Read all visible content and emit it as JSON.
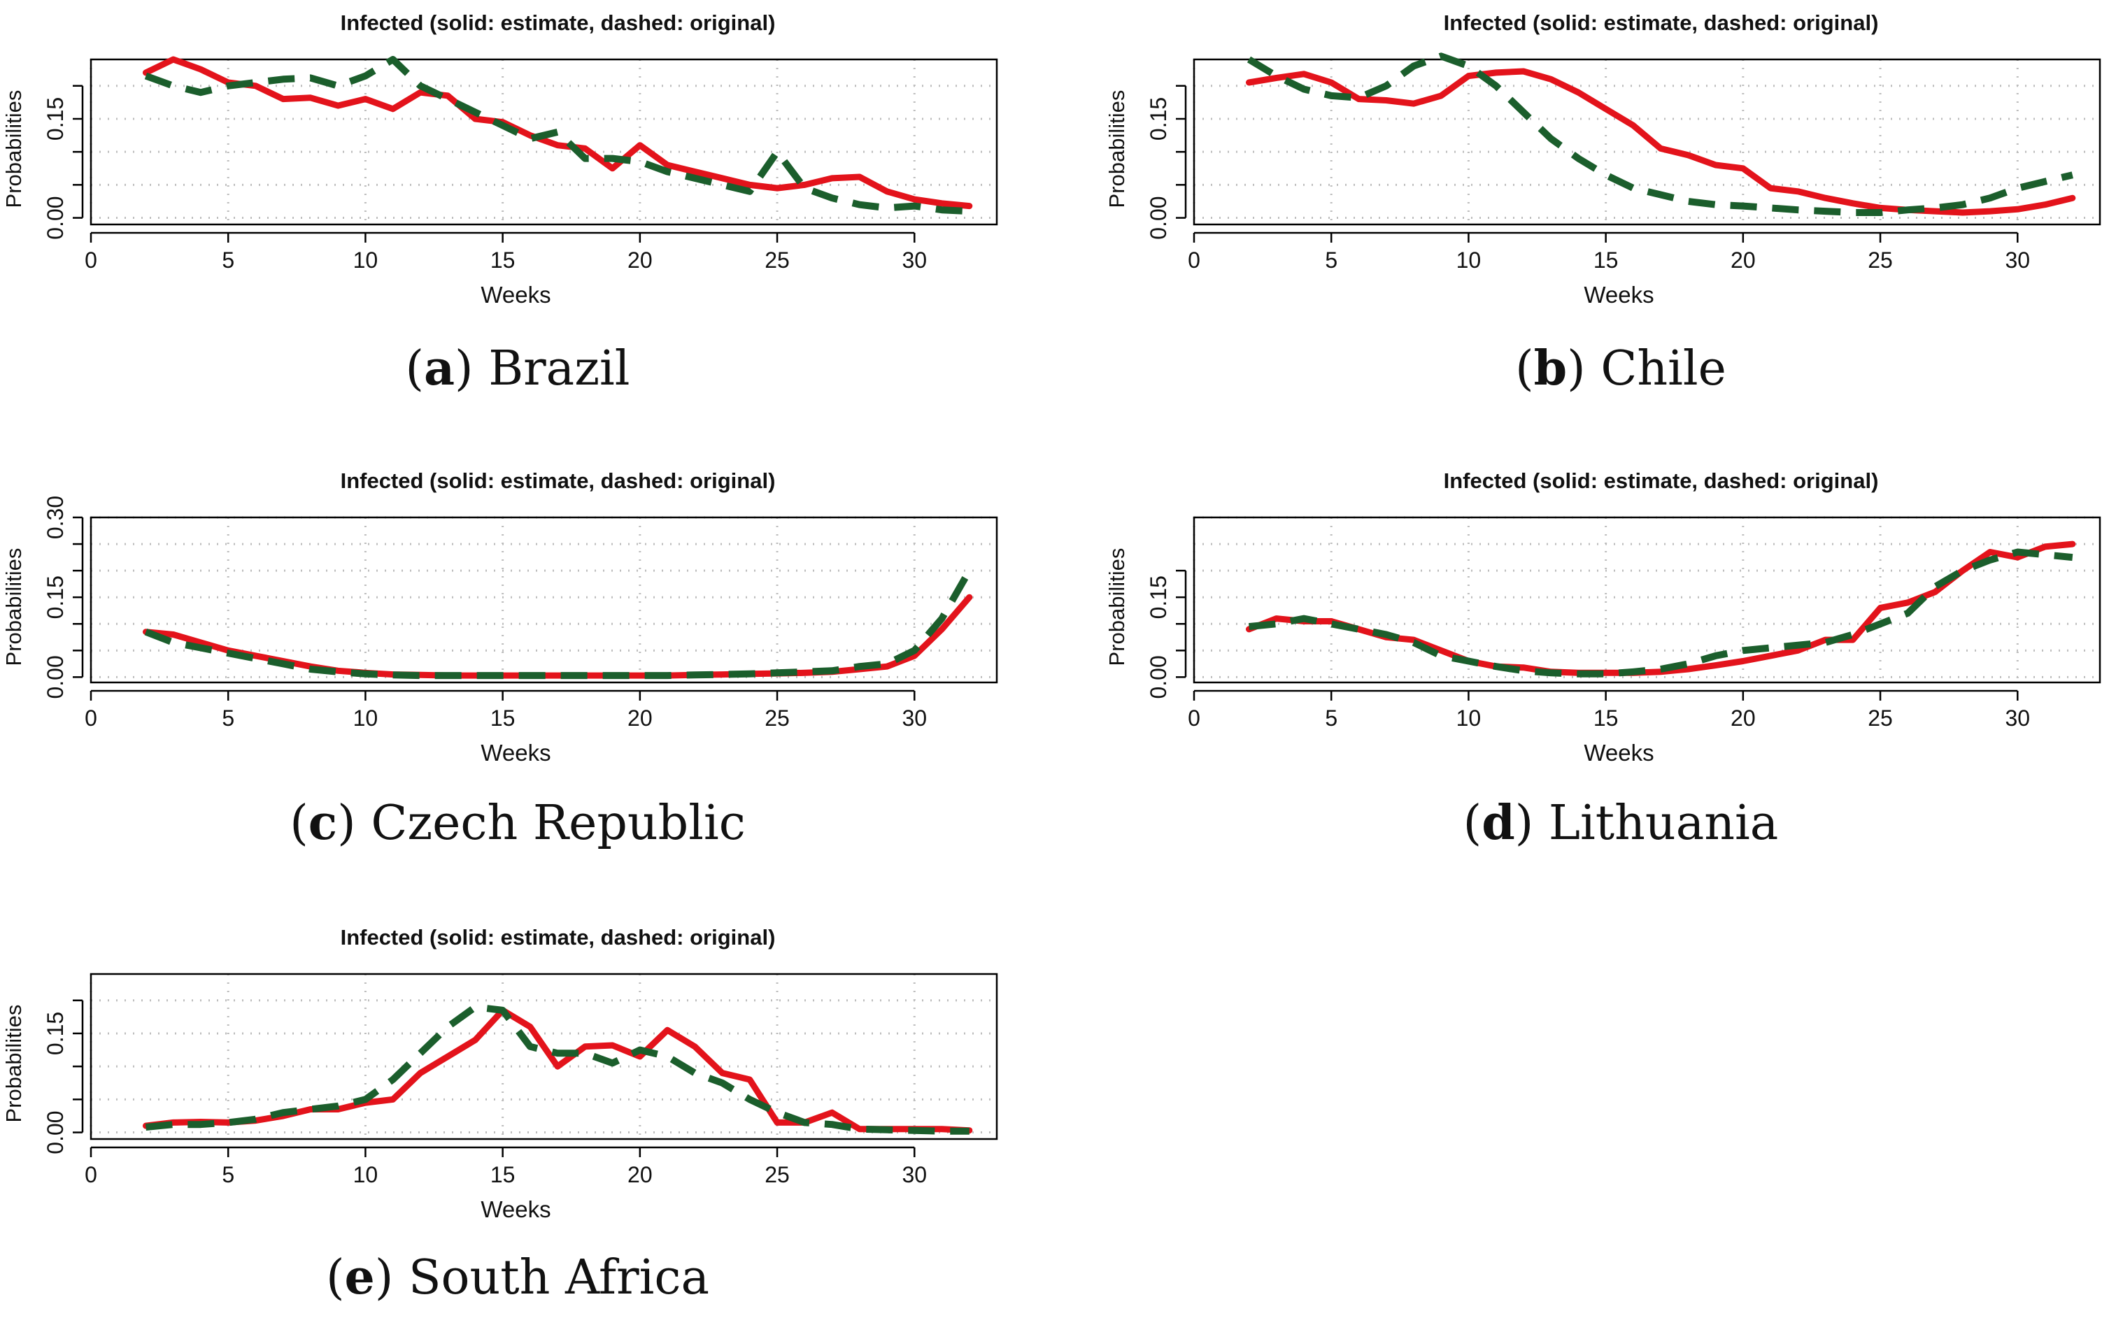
{
  "colors": {
    "estimate": "#e3131b",
    "original": "#1b5e2c",
    "grid": "#bdbdbd",
    "axis": "#000000"
  },
  "chart_data": [
    {
      "type": "line",
      "title": "Infected  (solid: estimate, dashed: original)",
      "xlabel": "Weeks",
      "ylabel": "Probabilities",
      "xlim": [
        0,
        33
      ],
      "ylim": [
        -0.01,
        0.24
      ],
      "xticks": [
        "0",
        "5",
        "10",
        "15",
        "20",
        "25",
        "30"
      ],
      "yticks": [
        "0.00",
        "0.15"
      ],
      "grid": true,
      "panel_label": "a",
      "country": "Brazil",
      "x": [
        2,
        3,
        4,
        5,
        6,
        7,
        8,
        9,
        10,
        11,
        12,
        13,
        14,
        15,
        16,
        17,
        18,
        19,
        20,
        21,
        22,
        23,
        24,
        25,
        26,
        27,
        28,
        29,
        30,
        31,
        32
      ],
      "series": [
        {
          "name": "estimate",
          "style": "solid",
          "values": [
            0.22,
            0.24,
            0.225,
            0.205,
            0.2,
            0.18,
            0.182,
            0.17,
            0.18,
            0.165,
            0.19,
            0.185,
            0.15,
            0.145,
            0.125,
            0.11,
            0.105,
            0.075,
            0.11,
            0.08,
            0.07,
            0.06,
            0.05,
            0.045,
            0.05,
            0.06,
            0.062,
            0.04,
            0.028,
            0.022,
            0.018
          ]
        },
        {
          "name": "original",
          "style": "dashed",
          "values": [
            0.215,
            0.2,
            0.19,
            0.2,
            0.205,
            0.21,
            0.212,
            0.2,
            0.215,
            0.24,
            0.2,
            0.18,
            0.16,
            0.14,
            0.12,
            0.13,
            0.09,
            0.09,
            0.085,
            0.07,
            0.06,
            0.05,
            0.04,
            0.1,
            0.045,
            0.03,
            0.02,
            0.015,
            0.018,
            0.012,
            0.01
          ]
        }
      ]
    },
    {
      "type": "line",
      "title": "Infected  (solid: estimate, dashed: original)",
      "xlabel": "Weeks",
      "ylabel": "Probabilities",
      "xlim": [
        0,
        33
      ],
      "ylim": [
        -0.01,
        0.24
      ],
      "xticks": [
        "0",
        "5",
        "10",
        "15",
        "20",
        "25",
        "30"
      ],
      "yticks": [
        "0.00",
        "0.15"
      ],
      "grid": true,
      "panel_label": "b",
      "country": "Chile",
      "x": [
        2,
        3,
        4,
        5,
        6,
        7,
        8,
        9,
        10,
        11,
        12,
        13,
        14,
        15,
        16,
        17,
        18,
        19,
        20,
        21,
        22,
        23,
        24,
        25,
        26,
        27,
        28,
        29,
        30,
        31,
        32
      ],
      "series": [
        {
          "name": "estimate",
          "style": "solid",
          "values": [
            0.205,
            0.212,
            0.218,
            0.205,
            0.18,
            0.178,
            0.173,
            0.185,
            0.215,
            0.22,
            0.222,
            0.21,
            0.19,
            0.165,
            0.14,
            0.105,
            0.095,
            0.08,
            0.075,
            0.045,
            0.04,
            0.03,
            0.022,
            0.015,
            0.012,
            0.01,
            0.008,
            0.01,
            0.013,
            0.02,
            0.03
          ]
        },
        {
          "name": "original",
          "style": "dashed",
          "values": [
            0.24,
            0.215,
            0.195,
            0.185,
            0.182,
            0.2,
            0.23,
            0.245,
            0.23,
            0.2,
            0.16,
            0.12,
            0.09,
            0.065,
            0.045,
            0.035,
            0.025,
            0.02,
            0.018,
            0.015,
            0.012,
            0.01,
            0.008,
            0.008,
            0.012,
            0.015,
            0.02,
            0.03,
            0.045,
            0.055,
            0.065
          ]
        }
      ]
    },
    {
      "type": "line",
      "title": "Infected  (solid: estimate, dashed: original)",
      "xlabel": "Weeks",
      "ylabel": "Probabilities",
      "xlim": [
        0,
        33
      ],
      "ylim": [
        -0.01,
        0.3
      ],
      "xticks": [
        "0",
        "5",
        "10",
        "15",
        "20",
        "25",
        "30"
      ],
      "yticks": [
        "0.00",
        "0.15",
        "0.30"
      ],
      "grid": true,
      "panel_label": "c",
      "country": "Czech Republic",
      "x": [
        2,
        3,
        4,
        5,
        6,
        7,
        8,
        9,
        10,
        11,
        12,
        13,
        14,
        15,
        16,
        17,
        18,
        19,
        20,
        21,
        22,
        23,
        24,
        25,
        26,
        27,
        28,
        29,
        30,
        31,
        32
      ],
      "series": [
        {
          "name": "estimate",
          "style": "solid",
          "values": [
            0.085,
            0.08,
            0.065,
            0.05,
            0.04,
            0.03,
            0.02,
            0.012,
            0.008,
            0.005,
            0.004,
            0.003,
            0.003,
            0.003,
            0.003,
            0.003,
            0.003,
            0.003,
            0.003,
            0.003,
            0.004,
            0.005,
            0.006,
            0.007,
            0.008,
            0.01,
            0.015,
            0.02,
            0.04,
            0.09,
            0.15
          ]
        },
        {
          "name": "original",
          "style": "dashed",
          "values": [
            0.085,
            0.065,
            0.055,
            0.045,
            0.035,
            0.025,
            0.015,
            0.01,
            0.006,
            0.004,
            0.003,
            0.003,
            0.003,
            0.003,
            0.003,
            0.003,
            0.003,
            0.003,
            0.003,
            0.003,
            0.004,
            0.005,
            0.006,
            0.008,
            0.01,
            0.012,
            0.02,
            0.025,
            0.05,
            0.11,
            0.2
          ]
        }
      ]
    },
    {
      "type": "line",
      "title": "Infected  (solid: estimate, dashed: original)",
      "xlabel": "Weeks",
      "ylabel": "Probabilities",
      "xlim": [
        0,
        33
      ],
      "ylim": [
        -0.01,
        0.3
      ],
      "xticks": [
        "0",
        "5",
        "10",
        "15",
        "20",
        "25",
        "30"
      ],
      "yticks": [
        "0.00",
        "0.15"
      ],
      "grid": true,
      "panel_label": "d",
      "country": "Lithuania",
      "x": [
        2,
        3,
        4,
        5,
        6,
        7,
        8,
        9,
        10,
        11,
        12,
        13,
        14,
        15,
        16,
        17,
        18,
        19,
        20,
        21,
        22,
        23,
        24,
        25,
        26,
        27,
        28,
        29,
        30,
        31,
        32
      ],
      "series": [
        {
          "name": "estimate",
          "style": "solid",
          "values": [
            0.09,
            0.11,
            0.105,
            0.105,
            0.09,
            0.075,
            0.07,
            0.05,
            0.03,
            0.02,
            0.018,
            0.01,
            0.008,
            0.008,
            0.008,
            0.01,
            0.015,
            0.022,
            0.03,
            0.04,
            0.05,
            0.07,
            0.07,
            0.13,
            0.14,
            0.16,
            0.2,
            0.235,
            0.225,
            0.245,
            0.25
          ]
        },
        {
          "name": "original",
          "style": "dashed",
          "values": [
            0.095,
            0.1,
            0.11,
            0.1,
            0.09,
            0.08,
            0.065,
            0.04,
            0.03,
            0.02,
            0.012,
            0.008,
            0.006,
            0.006,
            0.01,
            0.015,
            0.025,
            0.04,
            0.05,
            0.055,
            0.06,
            0.065,
            0.08,
            0.1,
            0.12,
            0.17,
            0.2,
            0.22,
            0.235,
            0.23,
            0.225
          ]
        }
      ]
    },
    {
      "type": "line",
      "title": "Infected  (solid: estimate, dashed: original)",
      "xlabel": "Weeks",
      "ylabel": "Probabilities",
      "xlim": [
        0,
        33
      ],
      "ylim": [
        -0.01,
        0.24
      ],
      "xticks": [
        "0",
        "5",
        "10",
        "15",
        "20",
        "25",
        "30"
      ],
      "yticks": [
        "0.00",
        "0.15"
      ],
      "grid": true,
      "panel_label": "e",
      "country": "South Africa",
      "x": [
        2,
        3,
        4,
        5,
        6,
        7,
        8,
        9,
        10,
        11,
        12,
        13,
        14,
        15,
        16,
        17,
        18,
        19,
        20,
        21,
        22,
        23,
        24,
        25,
        26,
        27,
        28,
        29,
        30,
        31,
        32
      ],
      "series": [
        {
          "name": "estimate",
          "style": "solid",
          "values": [
            0.01,
            0.015,
            0.016,
            0.015,
            0.018,
            0.025,
            0.035,
            0.035,
            0.045,
            0.05,
            0.09,
            0.115,
            0.14,
            0.185,
            0.16,
            0.1,
            0.13,
            0.132,
            0.115,
            0.155,
            0.13,
            0.09,
            0.08,
            0.015,
            0.015,
            0.03,
            0.005,
            0.005,
            0.005,
            0.005,
            0.003
          ]
        },
        {
          "name": "original",
          "style": "dashed",
          "values": [
            0.008,
            0.012,
            0.012,
            0.015,
            0.02,
            0.03,
            0.035,
            0.04,
            0.05,
            0.08,
            0.12,
            0.16,
            0.19,
            0.185,
            0.13,
            0.12,
            0.12,
            0.105,
            0.125,
            0.115,
            0.09,
            0.075,
            0.05,
            0.03,
            0.015,
            0.012,
            0.005,
            0.004,
            0.003,
            0.002,
            0.002
          ]
        }
      ]
    }
  ]
}
